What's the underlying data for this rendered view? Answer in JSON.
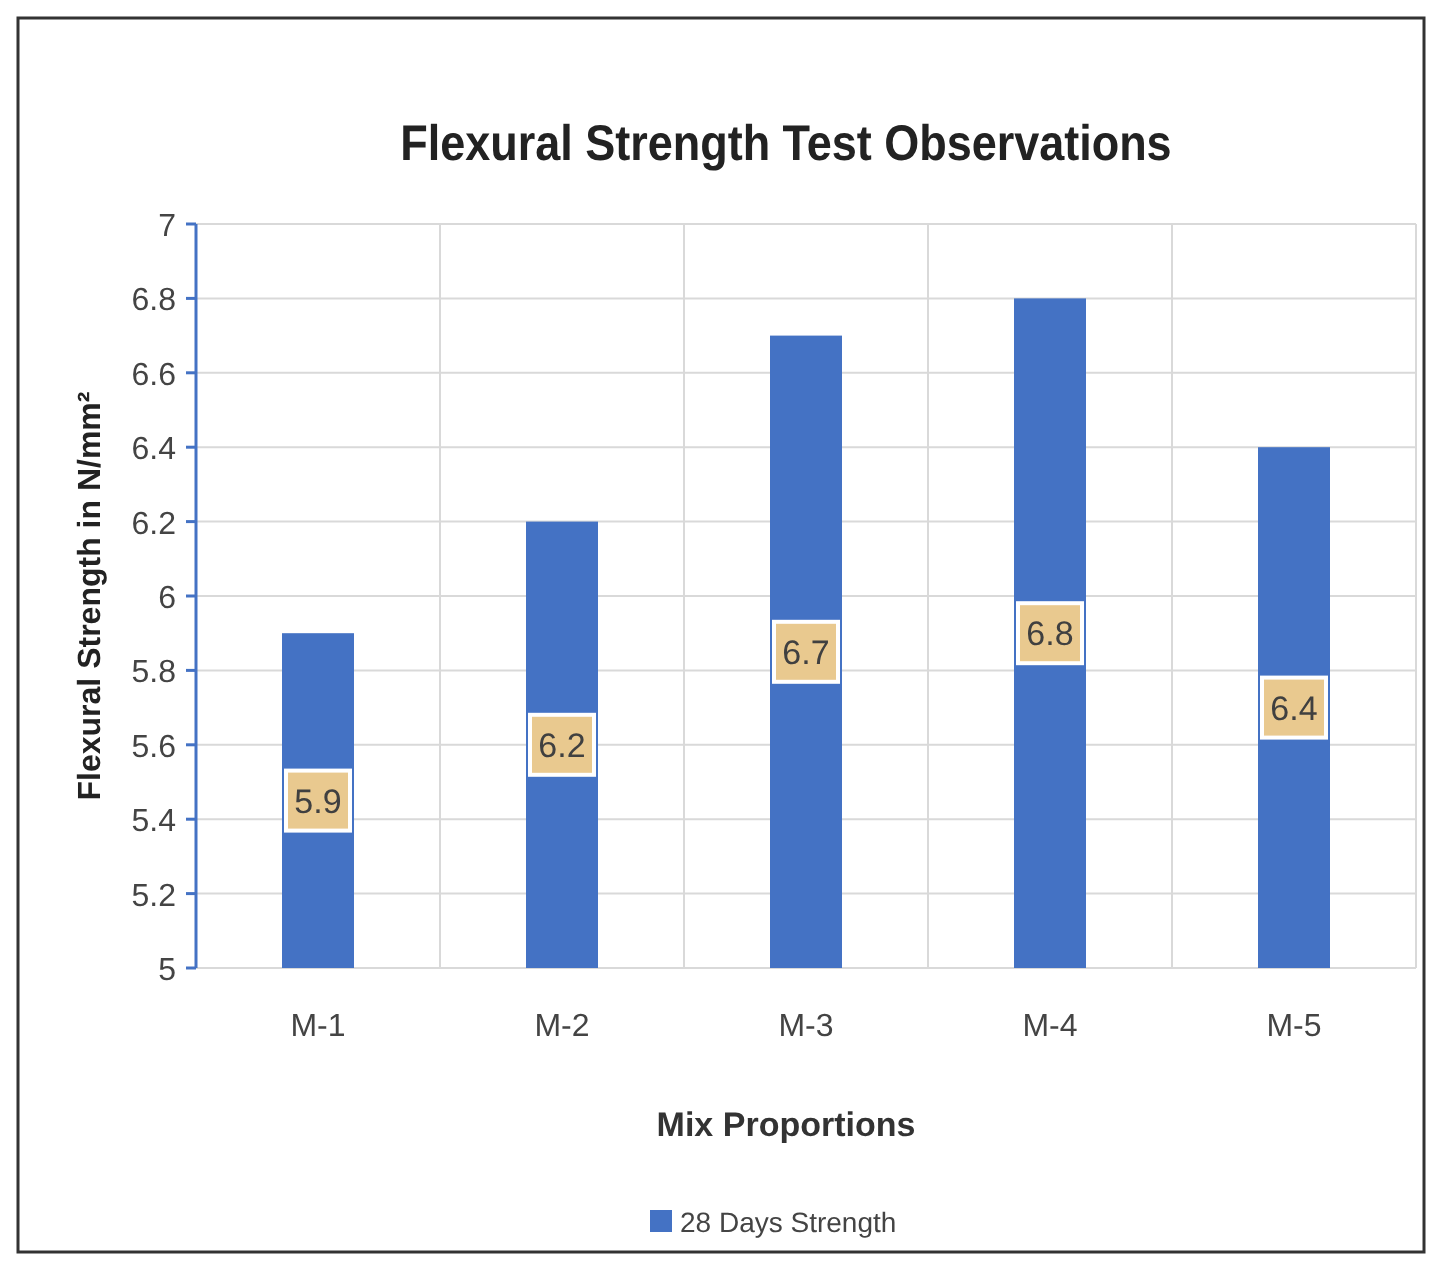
{
  "chart_data": {
    "type": "bar",
    "title": "Flexural Strength Test Observations",
    "xlabel": "Mix Proportions",
    "ylabel": "Flexural Strength in N/mm²",
    "categories": [
      "M-1",
      "M-2",
      "M-3",
      "M-4",
      "M-5"
    ],
    "series": [
      {
        "name": "28 Days Strength",
        "color": "#4472c4",
        "values": [
          5.9,
          6.2,
          6.7,
          6.8,
          6.4
        ]
      }
    ],
    "ylim": [
      5,
      7
    ],
    "yticks": [
      5,
      5.2,
      5.4,
      5.6,
      5.8,
      6,
      6.2,
      6.4,
      6.6,
      6.8,
      7
    ],
    "grid": true,
    "legend": "bottom",
    "data_labels": true
  }
}
